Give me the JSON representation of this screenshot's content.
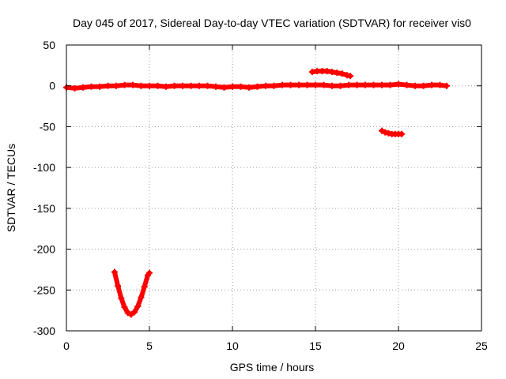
{
  "chart_data": {
    "type": "scatter",
    "title": "Day 045 of 2017, Sidereal Day-to-day VTEC variation (SDTVAR) for receiver vis0",
    "xlabel": "GPS time / hours",
    "ylabel": "SDTVAR / TECUs",
    "xlim": [
      0,
      25
    ],
    "ylim": [
      -300,
      50
    ],
    "xticks": [
      0,
      5,
      10,
      15,
      20,
      25
    ],
    "yticks": [
      50,
      0,
      -50,
      -100,
      -150,
      -200,
      -250,
      -300
    ],
    "grid": true,
    "legend": "none",
    "color": "#ff0000",
    "series": [
      {
        "x": [
          0.0,
          0.5,
          1.0,
          1.5,
          2.0,
          2.5,
          3.0,
          3.5,
          4.0,
          4.5,
          5.0,
          5.5,
          6.0,
          6.5,
          7.0,
          7.5,
          8.0,
          8.5,
          9.0,
          9.5,
          10.0,
          10.5,
          11.0,
          11.5,
          12.0,
          12.5,
          13.0,
          13.5,
          14.0,
          14.5,
          15.0,
          15.5,
          16.0,
          16.5,
          17.0,
          17.5,
          18.0,
          18.5,
          19.0,
          19.5,
          20.0,
          20.5,
          21.0,
          21.5,
          22.0,
          22.5,
          22.9
        ],
        "y": [
          -2,
          -3,
          -2,
          -1,
          -1,
          0,
          0,
          1,
          1,
          0,
          0,
          0,
          -1,
          0,
          0,
          0,
          0,
          0,
          -1,
          -2,
          -1,
          -1,
          -2,
          -1,
          0,
          0,
          1,
          1,
          1,
          1,
          1,
          1,
          0,
          0,
          1,
          1,
          1,
          1,
          1,
          1,
          2,
          1,
          0,
          0,
          1,
          1,
          0
        ]
      },
      {
        "x": [
          14.8,
          15.1,
          15.4,
          15.7,
          16.0,
          16.3,
          16.6,
          16.9,
          17.1
        ],
        "y": [
          17,
          18,
          18,
          18,
          17,
          16,
          15,
          13,
          12
        ]
      },
      {
        "x": [
          19.0,
          19.2,
          19.4,
          19.6,
          19.8,
          20.0,
          20.2
        ],
        "y": [
          -55,
          -57,
          -58,
          -59,
          -59,
          -59,
          -59
        ]
      },
      {
        "x": [
          2.9,
          3.1,
          3.3,
          3.5,
          3.7,
          3.9,
          4.1,
          4.3,
          4.5,
          4.7,
          4.9,
          5.0
        ],
        "y": [
          -228,
          -245,
          -260,
          -271,
          -278,
          -280,
          -277,
          -270,
          -259,
          -246,
          -232,
          -229
        ]
      }
    ]
  }
}
